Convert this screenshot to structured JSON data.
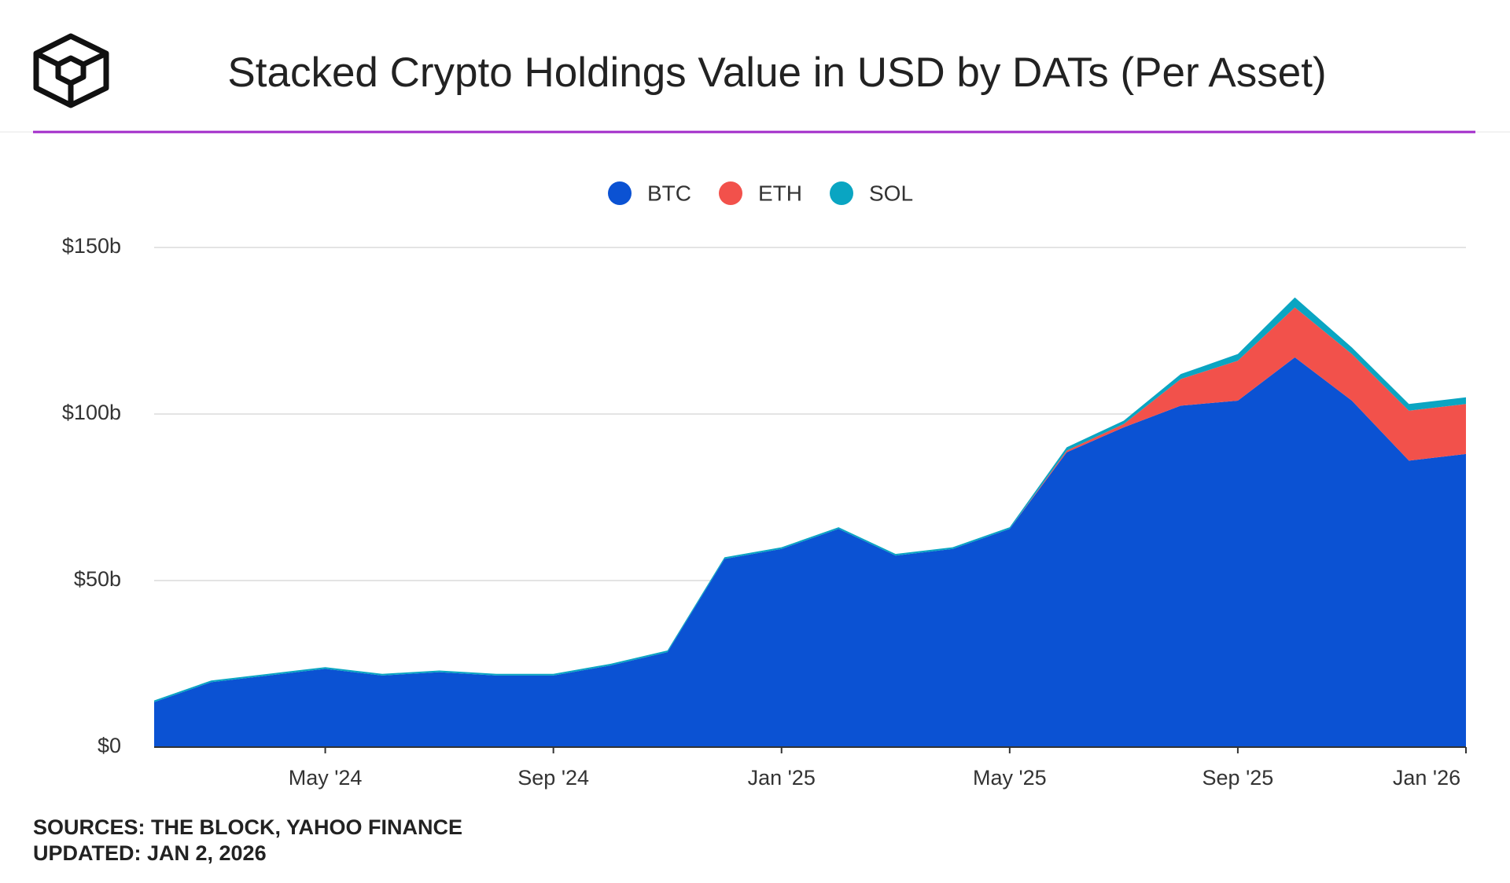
{
  "chart_data": {
    "type": "stacked-area",
    "title": "Stacked Crypto Holdings Value in USD by DATs (Per Asset)",
    "x": [
      "2024-02",
      "2024-03",
      "2024-04",
      "2024-05",
      "2024-06",
      "2024-07",
      "2024-08",
      "2024-09",
      "2024-10",
      "2024-11",
      "2024-12",
      "2025-01",
      "2025-02",
      "2025-03",
      "2025-04",
      "2025-05",
      "2025-06",
      "2025-07",
      "2025-08",
      "2025-09",
      "2025-10",
      "2025-11",
      "2025-12",
      "2026-01"
    ],
    "series": [
      {
        "name": "BTC",
        "color": "#0b52d3",
        "values": [
          13.5,
          19.5,
          21.5,
          23.5,
          21.5,
          22.5,
          21.5,
          21.5,
          24.5,
          28.5,
          56.5,
          59.5,
          65.5,
          57.5,
          59.5,
          65.5,
          88.5,
          96,
          102.5,
          104,
          117,
          104,
          86,
          88
        ]
      },
      {
        "name": "ETH",
        "color": "#f2514b",
        "values": [
          0,
          0,
          0,
          0,
          0,
          0,
          0,
          0,
          0,
          0,
          0,
          0,
          0,
          0,
          0,
          0,
          0.5,
          1,
          8,
          12,
          15,
          14,
          15,
          15
        ]
      },
      {
        "name": "SOL",
        "color": "#0aa5c2",
        "values": [
          0.5,
          0.5,
          0.5,
          0.5,
          0.5,
          0.5,
          0.5,
          0.5,
          0.5,
          0.5,
          0.5,
          0.5,
          0.5,
          0.5,
          0.5,
          0.5,
          1,
          1,
          1.5,
          2,
          3,
          2,
          2,
          2
        ]
      }
    ],
    "xlim": [
      "2024-02",
      "2026-01"
    ],
    "xticks": [
      {
        "value": "2024-05",
        "label": "May '24"
      },
      {
        "value": "2024-09",
        "label": "Sep '24"
      },
      {
        "value": "2025-01",
        "label": "Jan '25"
      },
      {
        "value": "2025-05",
        "label": "May '25"
      },
      {
        "value": "2025-09",
        "label": "Sep '25"
      },
      {
        "value": "2026-01",
        "label": "Jan '26"
      }
    ],
    "ylim": [
      0,
      150
    ],
    "yticks": [
      {
        "value": 0,
        "label": "$0"
      },
      {
        "value": 50,
        "label": "$50b"
      },
      {
        "value": 100,
        "label": "$100b"
      },
      {
        "value": 150,
        "label": "$150b"
      }
    ],
    "grid": true,
    "legend": "top",
    "sources": "SOURCES: THE BLOCK, YAHOO FINANCE",
    "updated": "UPDATED: JAN 2, 2026"
  }
}
